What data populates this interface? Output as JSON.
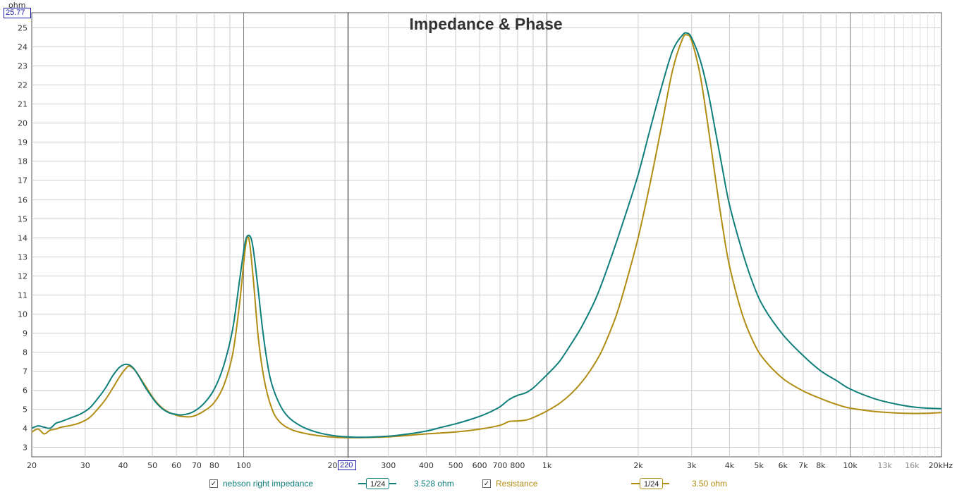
{
  "chart_data": {
    "type": "line",
    "title": "Impedance & Phase",
    "ylabel": "ohm",
    "x_scale": "log",
    "xlim": [
      20,
      20000
    ],
    "ylim": [
      2.5,
      25.77
    ],
    "x_ticks": [
      "20",
      "30",
      "40",
      "50",
      "60",
      "70",
      "80",
      "100",
      "200",
      "300",
      "400",
      "500",
      "600",
      "700",
      "800",
      "1k",
      "2k",
      "3k",
      "4k",
      "5k",
      "6k",
      "7k",
      "8k",
      "10k",
      "13k",
      "16k",
      "20kHz"
    ],
    "x_tick_values": [
      20,
      30,
      40,
      50,
      60,
      70,
      80,
      100,
      200,
      300,
      400,
      500,
      600,
      700,
      800,
      1000,
      2000,
      3000,
      4000,
      5000,
      6000,
      7000,
      8000,
      10000,
      13000,
      16000,
      20000
    ],
    "x_tick_minor": [
      "13k",
      "16k"
    ],
    "y_ticks": [
      3,
      4,
      5,
      6,
      7,
      8,
      9,
      10,
      11,
      12,
      13,
      14,
      15,
      16,
      17,
      18,
      19,
      20,
      21,
      22,
      23,
      24,
      25
    ],
    "grid": true,
    "legend_position": "bottom",
    "cursor": {
      "x": 220,
      "x_label": "220",
      "y_label": "25.77"
    },
    "series": [
      {
        "name": "nebson right impedance",
        "color": "#0f7f7b",
        "enabled": true,
        "smoothing": "1/24",
        "cursor_value": "3.528 ohm",
        "points": [
          [
            20,
            4.0
          ],
          [
            21,
            4.12
          ],
          [
            22,
            4.05
          ],
          [
            23,
            4.0
          ],
          [
            24,
            4.25
          ],
          [
            25,
            4.35
          ],
          [
            27,
            4.55
          ],
          [
            29,
            4.75
          ],
          [
            31,
            5.05
          ],
          [
            33,
            5.55
          ],
          [
            35,
            6.1
          ],
          [
            37,
            6.75
          ],
          [
            39,
            7.2
          ],
          [
            41,
            7.35
          ],
          [
            43,
            7.2
          ],
          [
            45,
            6.75
          ],
          [
            48,
            6.0
          ],
          [
            52,
            5.25
          ],
          [
            56,
            4.85
          ],
          [
            60,
            4.72
          ],
          [
            63,
            4.7
          ],
          [
            68,
            4.85
          ],
          [
            74,
            5.3
          ],
          [
            80,
            6.05
          ],
          [
            86,
            7.3
          ],
          [
            92,
            9.2
          ],
          [
            97,
            11.8
          ],
          [
            101,
            13.7
          ],
          [
            104,
            14.1
          ],
          [
            107,
            13.6
          ],
          [
            111,
            11.6
          ],
          [
            116,
            8.9
          ],
          [
            122,
            6.7
          ],
          [
            130,
            5.4
          ],
          [
            140,
            4.6
          ],
          [
            155,
            4.1
          ],
          [
            175,
            3.78
          ],
          [
            200,
            3.6
          ],
          [
            230,
            3.53
          ],
          [
            260,
            3.53
          ],
          [
            300,
            3.58
          ],
          [
            350,
            3.7
          ],
          [
            400,
            3.85
          ],
          [
            450,
            4.05
          ],
          [
            500,
            4.23
          ],
          [
            550,
            4.42
          ],
          [
            600,
            4.62
          ],
          [
            650,
            4.85
          ],
          [
            700,
            5.12
          ],
          [
            750,
            5.5
          ],
          [
            800,
            5.72
          ],
          [
            850,
            5.85
          ],
          [
            900,
            6.1
          ],
          [
            1000,
            6.8
          ],
          [
            1100,
            7.5
          ],
          [
            1200,
            8.4
          ],
          [
            1300,
            9.3
          ],
          [
            1450,
            10.8
          ],
          [
            1600,
            12.6
          ],
          [
            1800,
            15.0
          ],
          [
            2000,
            17.3
          ],
          [
            2200,
            19.8
          ],
          [
            2400,
            22.0
          ],
          [
            2600,
            23.8
          ],
          [
            2800,
            24.6
          ],
          [
            2900,
            24.7
          ],
          [
            3000,
            24.45
          ],
          [
            3200,
            23.3
          ],
          [
            3400,
            21.6
          ],
          [
            3600,
            19.5
          ],
          [
            3800,
            17.5
          ],
          [
            4000,
            15.7
          ],
          [
            4400,
            13.3
          ],
          [
            4800,
            11.5
          ],
          [
            5200,
            10.3
          ],
          [
            6000,
            8.9
          ],
          [
            7000,
            7.8
          ],
          [
            8000,
            7.0
          ],
          [
            9000,
            6.5
          ],
          [
            10000,
            6.05
          ],
          [
            12000,
            5.55
          ],
          [
            14000,
            5.28
          ],
          [
            16000,
            5.12
          ],
          [
            18000,
            5.05
          ],
          [
            20000,
            5.02
          ]
        ]
      },
      {
        "name": "Resistance",
        "color": "#b08c12",
        "enabled": true,
        "smoothing": "1/24",
        "cursor_value": "3.50 ohm",
        "points": [
          [
            20,
            3.8
          ],
          [
            21,
            3.95
          ],
          [
            22,
            3.7
          ],
          [
            23,
            3.9
          ],
          [
            24,
            3.95
          ],
          [
            25,
            4.05
          ],
          [
            27,
            4.15
          ],
          [
            29,
            4.3
          ],
          [
            31,
            4.55
          ],
          [
            33,
            5.0
          ],
          [
            35,
            5.5
          ],
          [
            37,
            6.1
          ],
          [
            39,
            6.7
          ],
          [
            41,
            7.15
          ],
          [
            42,
            7.25
          ],
          [
            44,
            7.0
          ],
          [
            47,
            6.3
          ],
          [
            51,
            5.45
          ],
          [
            55,
            4.95
          ],
          [
            60,
            4.68
          ],
          [
            64,
            4.6
          ],
          [
            68,
            4.62
          ],
          [
            74,
            4.9
          ],
          [
            80,
            5.35
          ],
          [
            86,
            6.25
          ],
          [
            92,
            7.9
          ],
          [
            97,
            10.6
          ],
          [
            101,
            13.3
          ],
          [
            103,
            14.05
          ],
          [
            105,
            13.5
          ],
          [
            108,
            11.5
          ],
          [
            112,
            8.6
          ],
          [
            117,
            6.5
          ],
          [
            124,
            5.0
          ],
          [
            132,
            4.3
          ],
          [
            145,
            3.9
          ],
          [
            165,
            3.68
          ],
          [
            190,
            3.55
          ],
          [
            220,
            3.5
          ],
          [
            300,
            3.55
          ],
          [
            400,
            3.7
          ],
          [
            500,
            3.8
          ],
          [
            600,
            3.95
          ],
          [
            700,
            4.15
          ],
          [
            750,
            4.35
          ],
          [
            800,
            4.38
          ],
          [
            850,
            4.42
          ],
          [
            900,
            4.55
          ],
          [
            1000,
            4.9
          ],
          [
            1100,
            5.3
          ],
          [
            1200,
            5.8
          ],
          [
            1300,
            6.4
          ],
          [
            1400,
            7.1
          ],
          [
            1500,
            7.9
          ],
          [
            1600,
            8.9
          ],
          [
            1700,
            10.0
          ],
          [
            1800,
            11.3
          ],
          [
            2000,
            14.0
          ],
          [
            2200,
            17.0
          ],
          [
            2400,
            20.0
          ],
          [
            2600,
            22.8
          ],
          [
            2800,
            24.4
          ],
          [
            2900,
            24.6
          ],
          [
            3000,
            24.3
          ],
          [
            3200,
            22.5
          ],
          [
            3400,
            19.8
          ],
          [
            3600,
            17.0
          ],
          [
            3800,
            14.5
          ],
          [
            4000,
            12.5
          ],
          [
            4400,
            10.0
          ],
          [
            4800,
            8.5
          ],
          [
            5200,
            7.6
          ],
          [
            6000,
            6.6
          ],
          [
            7000,
            5.95
          ],
          [
            8000,
            5.55
          ],
          [
            9000,
            5.25
          ],
          [
            10000,
            5.05
          ],
          [
            12000,
            4.88
          ],
          [
            14000,
            4.8
          ],
          [
            16000,
            4.77
          ],
          [
            18000,
            4.78
          ],
          [
            20000,
            4.82
          ]
        ]
      }
    ]
  }
}
